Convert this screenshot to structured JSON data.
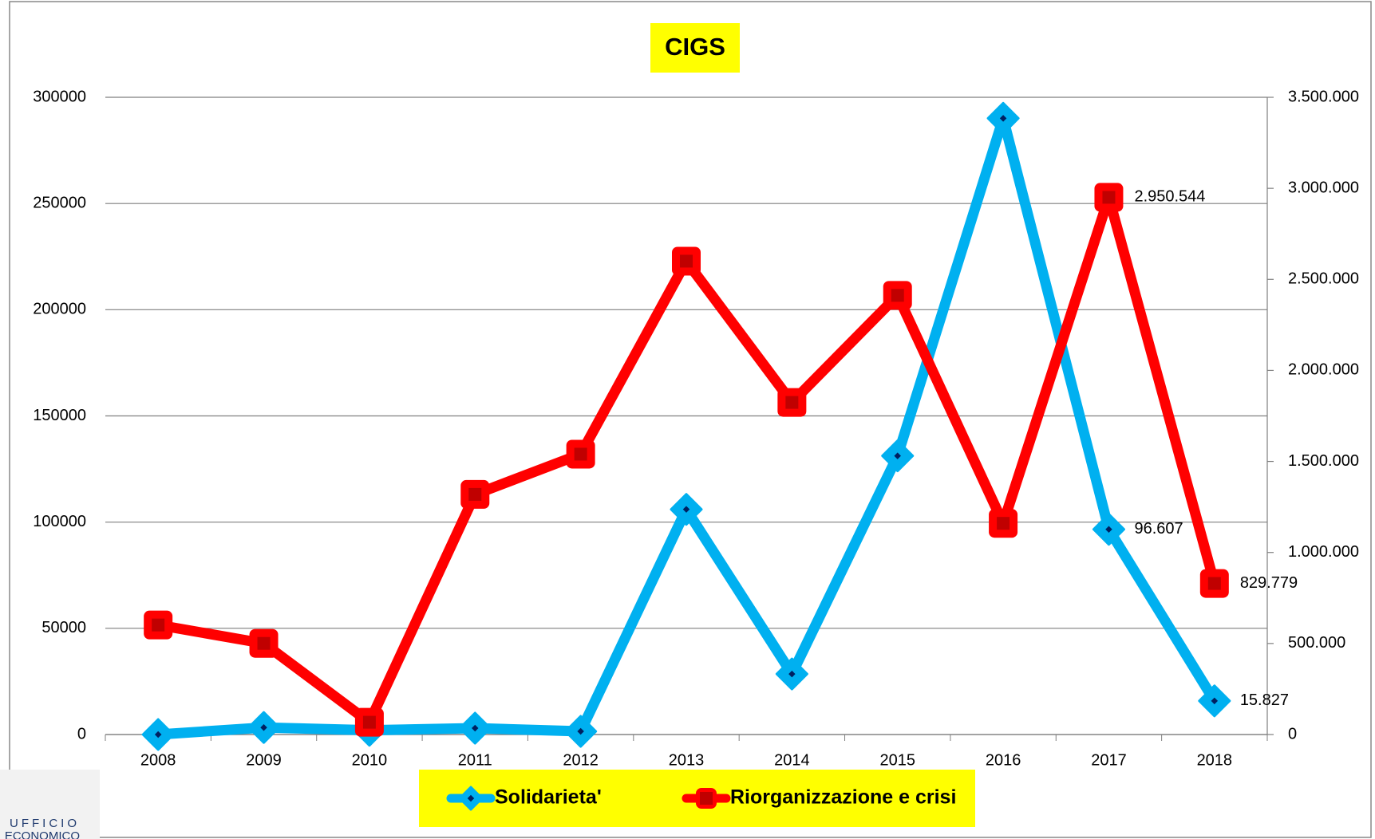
{
  "chart_data": {
    "type": "line",
    "title": "CIGS",
    "categories": [
      "2008",
      "2009",
      "2010",
      "2011",
      "2012",
      "2013",
      "2014",
      "2015",
      "2016",
      "2017",
      "2018"
    ],
    "series": [
      {
        "name": "Solidarieta'",
        "color": "#00b0f0",
        "axis": "y",
        "marker": "diamond",
        "values": [
          0,
          3300,
          2000,
          3000,
          1500,
          106000,
          28500,
          131200,
          290100,
          96607,
          15827
        ],
        "value_labels": [
          null,
          null,
          null,
          null,
          null,
          null,
          null,
          null,
          null,
          "96.607",
          "15.827"
        ]
      },
      {
        "name": "Riorganizzazione e crisi",
        "color": "#ff0000",
        "axis": "y2",
        "marker": "square",
        "values": [
          601700,
          500600,
          67400,
          1319000,
          1540000,
          2600000,
          1824000,
          2412000,
          1160000,
          2950544,
          829779
        ],
        "value_labels": [
          null,
          null,
          null,
          null,
          null,
          null,
          null,
          null,
          null,
          "2.950.544",
          "829.779"
        ]
      }
    ],
    "ylim": [
      0,
      300000
    ],
    "yticks": [
      0,
      50000,
      100000,
      150000,
      200000,
      250000,
      300000
    ],
    "y2lim": [
      0,
      3500000
    ],
    "y2ticks": [
      {
        "value": 0,
        "label": "0"
      },
      {
        "value": 500000,
        "label": "500.000"
      },
      {
        "value": 1000000,
        "label": "1.000.000"
      },
      {
        "value": 1500000,
        "label": "1.500.000"
      },
      {
        "value": 2000000,
        "label": "2.000.000"
      },
      {
        "value": 2500000,
        "label": "2.500.000"
      },
      {
        "value": 3000000,
        "label": "3.000.000"
      },
      {
        "value": 3500000,
        "label": "3.500.000"
      }
    ],
    "grid": true,
    "legend": "bottom"
  },
  "logo": [
    "UFFICIO",
    "ECONOMICO"
  ]
}
